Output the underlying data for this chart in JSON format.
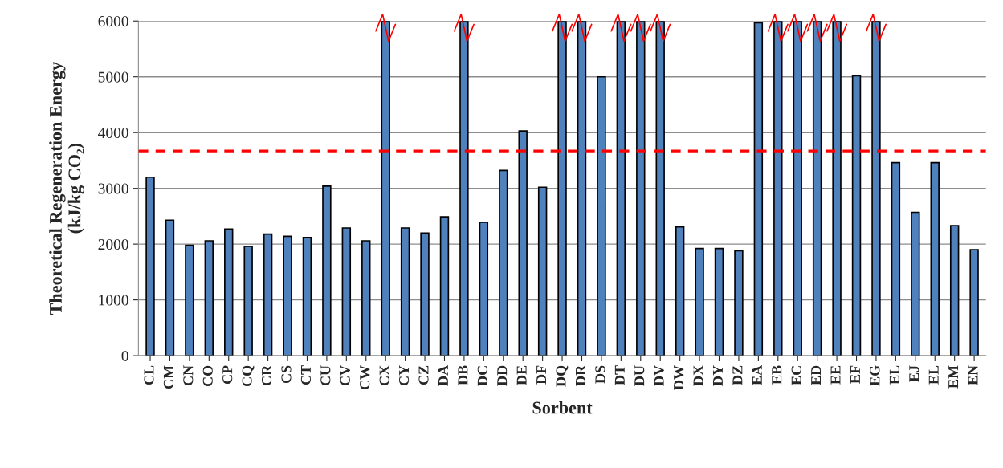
{
  "chart_data": {
    "type": "bar",
    "xlabel": "Sorbent",
    "ylabel": "Theoretical Regeneration Energy\n(kJ/kg CO₂)",
    "categories": [
      "CL",
      "CM",
      "CN",
      "CO",
      "CP",
      "CQ",
      "CR",
      "CS",
      "CT",
      "CU",
      "CV",
      "CW",
      "CX",
      "CY",
      "CZ",
      "DA",
      "DB",
      "DC",
      "DD",
      "DE",
      "DF",
      "DQ",
      "DR",
      "DS",
      "DT",
      "DU",
      "DV",
      "DW",
      "DX",
      "DY",
      "DZ",
      "EA",
      "EB",
      "EC",
      "ED",
      "EE",
      "EF",
      "EG",
      "EL",
      "EJ",
      "EL",
      "EM",
      "EN"
    ],
    "values": [
      3200,
      2430,
      1980,
      2060,
      2270,
      1960,
      2180,
      2140,
      2120,
      3040,
      2290,
      2060,
      6000,
      2290,
      2200,
      2490,
      6000,
      2390,
      3320,
      4030,
      3020,
      6000,
      6000,
      5000,
      6000,
      6000,
      6000,
      2310,
      1920,
      1920,
      1880,
      5970,
      6000,
      6000,
      6000,
      6000,
      5020,
      6000,
      3460,
      2570,
      3460,
      2330,
      1900
    ],
    "color": "#4f81bd",
    "ylim": [
      0,
      6000
    ],
    "yticks": [
      0,
      1000,
      2000,
      3000,
      4000,
      5000,
      6000
    ],
    "grid": "y",
    "legend": false,
    "ref_lines": [
      {
        "axis": "y",
        "value": 3670,
        "color": "#ff0000",
        "line_style": "dashed"
      }
    ]
  }
}
